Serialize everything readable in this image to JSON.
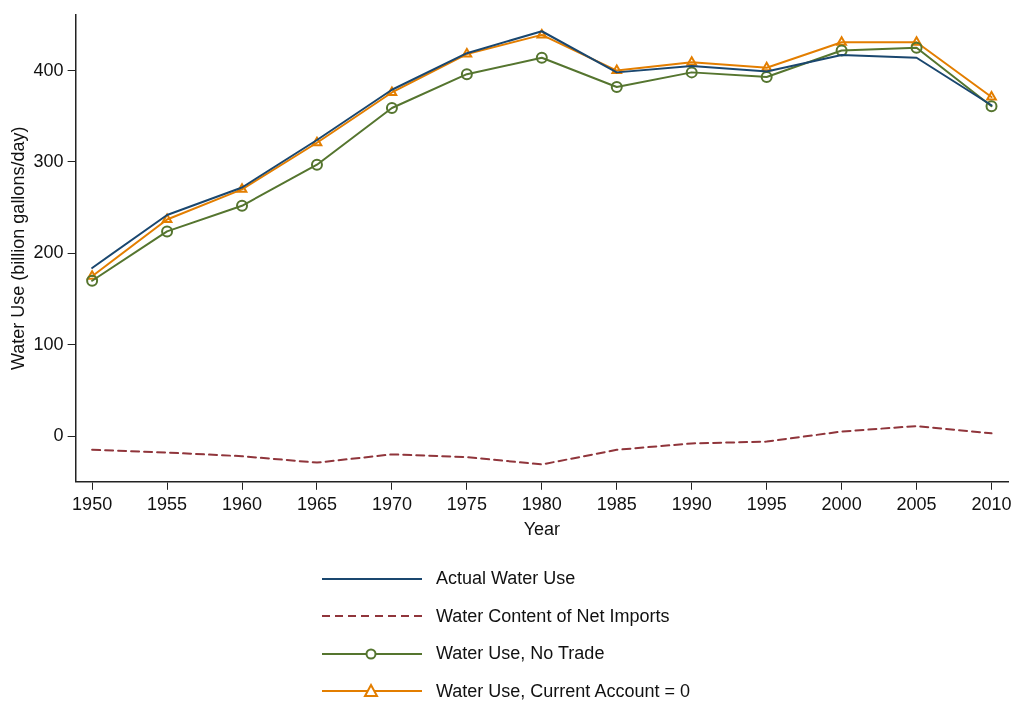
{
  "chart_data": {
    "type": "line",
    "xlabel": "Year",
    "ylabel": "Water Use (billion gallons/day)",
    "x": [
      1950,
      1955,
      1960,
      1965,
      1970,
      1975,
      1980,
      1985,
      1990,
      1995,
      2000,
      2005,
      2010
    ],
    "xlim": [
      1948.9,
      2011.1
    ],
    "xticks": [
      1950,
      1955,
      1960,
      1965,
      1970,
      1975,
      1980,
      1985,
      1990,
      1995,
      2000,
      2005,
      2010
    ],
    "ylim": [
      -50,
      461
    ],
    "yticks": [
      0,
      100,
      200,
      300,
      400
    ],
    "grid": false,
    "legend": "bottom",
    "series": [
      {
        "name": "Actual Water Use",
        "color": "#1a476f",
        "marker": "none",
        "line_style": "solid",
        "values": [
          184,
          242,
          272,
          324,
          379,
          419,
          443,
          398,
          405,
          399,
          417,
          414,
          362
        ]
      },
      {
        "name": "Water Content of Net Imports",
        "color": "#90353b",
        "marker": "none",
        "line_style": "dashed",
        "values": [
          -15,
          -18,
          -22,
          -29,
          -20,
          -23,
          -31,
          -15,
          -8,
          -6,
          5,
          11,
          3
        ]
      },
      {
        "name": "Water Use, No Trade",
        "color": "#55752f",
        "marker": "circle",
        "line_style": "solid",
        "values": [
          170,
          224,
          252,
          297,
          359,
          396,
          414,
          382,
          398,
          393,
          422,
          425,
          361
        ]
      },
      {
        "name": "Water Use, Current Account = 0",
        "color": "#e37e00",
        "marker": "triangle",
        "line_style": "solid",
        "values": [
          175,
          237,
          270,
          321,
          376,
          418,
          439,
          400,
          409,
          403,
          431,
          431,
          371
        ]
      }
    ]
  }
}
